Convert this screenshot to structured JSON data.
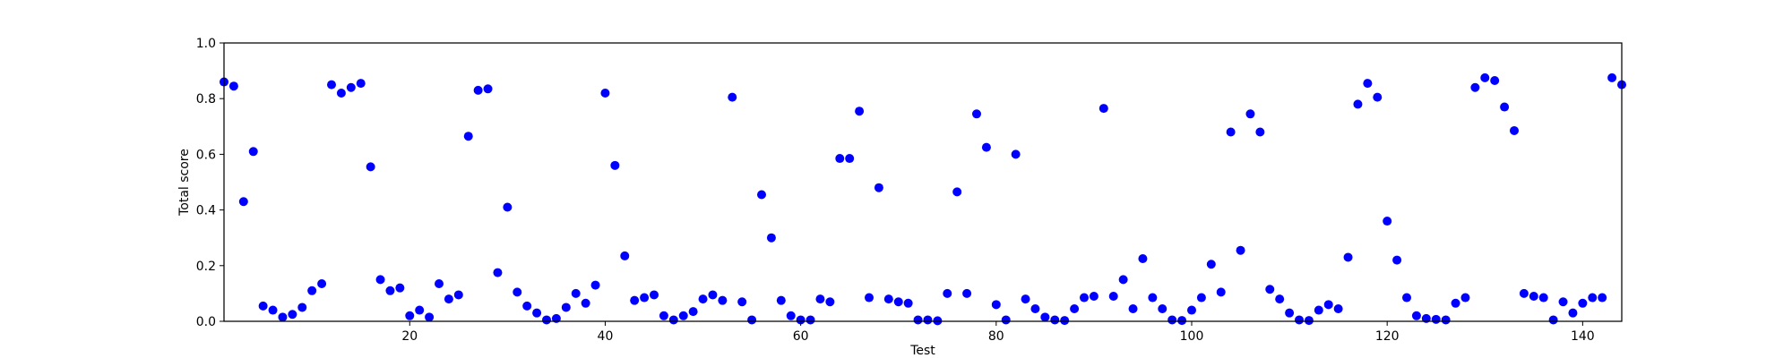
{
  "chart_data": {
    "type": "scatter",
    "title": "",
    "xlabel": "Test",
    "ylabel": "Total score",
    "xlim": [
      1,
      144
    ],
    "ylim": [
      0.0,
      1.0
    ],
    "xticks": [
      20,
      40,
      60,
      80,
      100,
      120,
      140
    ],
    "yticks": [
      0.0,
      0.2,
      0.4,
      0.6,
      0.8,
      1.0
    ],
    "ytick_labels": [
      "0.0",
      "0.2",
      "0.4",
      "0.6",
      "0.8",
      "1.0"
    ],
    "grid": false,
    "legend": "none",
    "marker_color": "#0000ff",
    "x": [
      1,
      2,
      3,
      4,
      5,
      6,
      7,
      8,
      9,
      10,
      11,
      12,
      13,
      14,
      15,
      16,
      17,
      18,
      19,
      20,
      21,
      22,
      23,
      24,
      25,
      26,
      27,
      28,
      29,
      30,
      31,
      32,
      33,
      34,
      35,
      36,
      37,
      38,
      39,
      40,
      41,
      42,
      43,
      44,
      45,
      46,
      47,
      48,
      49,
      50,
      51,
      52,
      53,
      54,
      55,
      56,
      57,
      58,
      59,
      60,
      61,
      62,
      63,
      64,
      65,
      66,
      67,
      68,
      69,
      70,
      71,
      72,
      73,
      74,
      75,
      76,
      77,
      78,
      79,
      80,
      81,
      82,
      83,
      84,
      85,
      86,
      87,
      88,
      89,
      90,
      91,
      92,
      93,
      94,
      95,
      96,
      97,
      98,
      99,
      100,
      101,
      102,
      103,
      104,
      105,
      106,
      107,
      108,
      109,
      110,
      111,
      112,
      113,
      114,
      115,
      116,
      117,
      118,
      119,
      120,
      121,
      122,
      123,
      124,
      125,
      126,
      127,
      128,
      129,
      130,
      131,
      132,
      133,
      134,
      135,
      136,
      137,
      138,
      139,
      140,
      141,
      142,
      143,
      144
    ],
    "y": [
      0.86,
      0.845,
      0.43,
      0.61,
      0.055,
      0.04,
      0.015,
      0.025,
      0.05,
      0.11,
      0.135,
      0.85,
      0.82,
      0.84,
      0.855,
      0.555,
      0.15,
      0.11,
      0.12,
      0.02,
      0.04,
      0.015,
      0.135,
      0.08,
      0.095,
      0.665,
      0.83,
      0.835,
      0.175,
      0.41,
      0.105,
      0.055,
      0.03,
      0.005,
      0.01,
      0.05,
      0.1,
      0.065,
      0.13,
      0.82,
      0.56,
      0.235,
      0.075,
      0.085,
      0.095,
      0.02,
      0.005,
      0.02,
      0.035,
      0.08,
      0.095,
      0.075,
      0.805,
      0.07,
      0.005,
      0.455,
      0.3,
      0.075,
      0.02,
      0.005,
      0.005,
      0.08,
      0.07,
      0.585,
      0.585,
      0.755,
      0.085,
      0.48,
      0.08,
      0.07,
      0.065,
      0.005,
      0.005,
      0.002,
      0.1,
      0.465,
      0.1,
      0.745,
      0.625,
      0.06,
      0.005,
      0.6,
      0.08,
      0.045,
      0.015,
      0.005,
      0.003,
      0.045,
      0.085,
      0.09,
      0.765,
      0.09,
      0.15,
      0.045,
      0.225,
      0.085,
      0.045,
      0.005,
      0.003,
      0.04,
      0.085,
      0.205,
      0.105,
      0.68,
      0.255,
      0.745,
      0.68,
      0.115,
      0.08,
      0.03,
      0.005,
      0.003,
      0.04,
      0.06,
      0.045,
      0.23,
      0.78,
      0.855,
      0.805,
      0.36,
      0.22,
      0.085,
      0.02,
      0.01,
      0.007,
      0.005,
      0.065,
      0.085,
      0.84,
      0.875,
      0.865,
      0.77,
      0.685,
      0.1,
      0.09,
      0.085,
      0.005,
      0.07,
      0.03,
      0.065,
      0.085,
      0.085,
      0.875,
      0.85
    ]
  }
}
